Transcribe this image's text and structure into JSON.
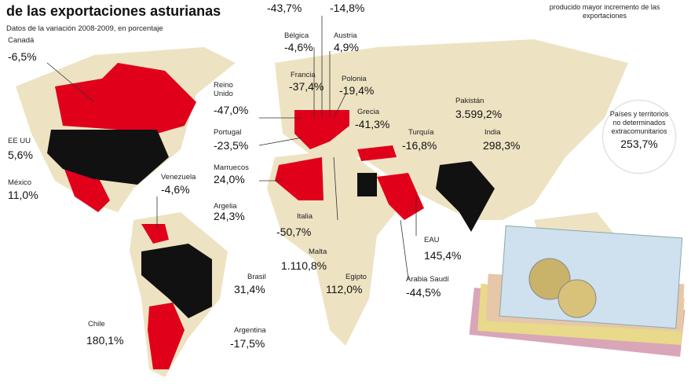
{
  "header": {
    "title": "de las exportaciones asturianas",
    "subtitle": "Datos de la variación 2008-2009, en porcentaje"
  },
  "legend": {
    "text": "producido mayor incremento de las exportaciones"
  },
  "cut_values": [
    "-43,7%",
    "-14,8%"
  ],
  "countries": [
    {
      "name": "Canadá",
      "value": "-6,5%"
    },
    {
      "name": "EE UU",
      "value": "5,6%"
    },
    {
      "name": "México",
      "value": "11,0%"
    },
    {
      "name": "Venezuela",
      "value": "-4,6%"
    },
    {
      "name": "Reino Unido",
      "value": "-47,0%"
    },
    {
      "name": "Portugal",
      "value": "-23,5%"
    },
    {
      "name": "Marruecos",
      "value": "24,0%"
    },
    {
      "name": "Argelia",
      "value": "24,3%"
    },
    {
      "name": "Francia",
      "value": "-37,4%"
    },
    {
      "name": "Bélgica",
      "value": "-4,6%"
    },
    {
      "name": "Austria",
      "value": "4,9%"
    },
    {
      "name": "Polonia",
      "value": "-19,4%"
    },
    {
      "name": "Grecia",
      "value": "-41,3%"
    },
    {
      "name": "Turquía",
      "value": "-16,8%"
    },
    {
      "name": "Pakistán",
      "value": "3.599,2%"
    },
    {
      "name": "India",
      "value": "298,3%"
    },
    {
      "name": "Italia",
      "value": "-50,7%"
    },
    {
      "name": "Malta",
      "value": "1.110,8%"
    },
    {
      "name": "Egipto",
      "value": "112,0%"
    },
    {
      "name": "EAU",
      "value": "145,4%"
    },
    {
      "name": "Arabia Saudí",
      "value": "-44,5%"
    },
    {
      "name": "Brasil",
      "value": "31,4%"
    },
    {
      "name": "Chile",
      "value": "180,1%"
    },
    {
      "name": "Argentina",
      "value": "-17,5%"
    }
  ],
  "other": {
    "label": "Países y territorios no determinados extracomunitarios",
    "value": "253,7%"
  }
}
